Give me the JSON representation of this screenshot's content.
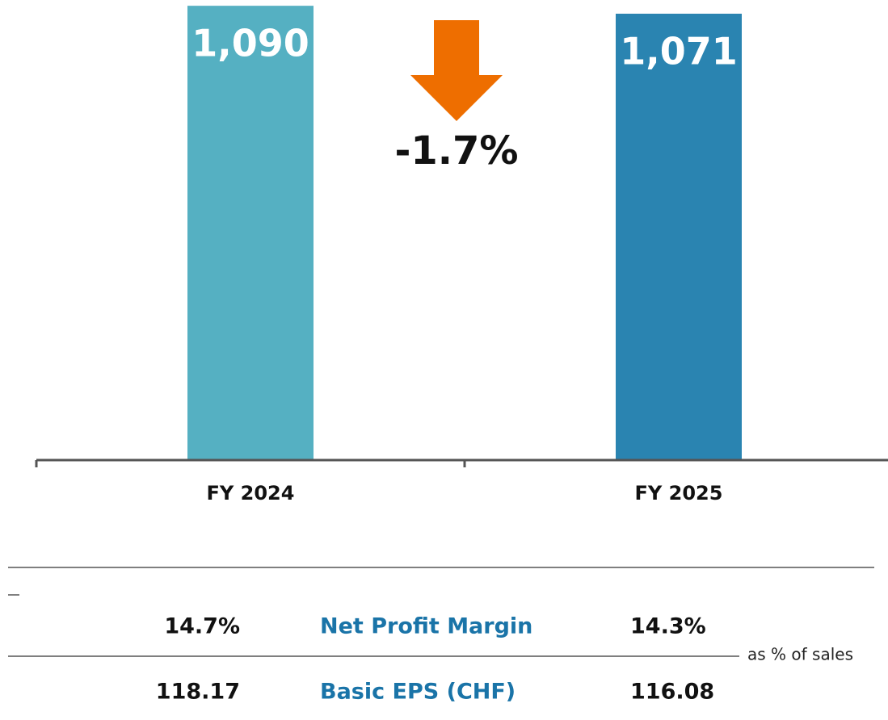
{
  "chart_data": {
    "type": "bar",
    "categories": [
      "FY 2024",
      "FY 2025"
    ],
    "values": [
      1090,
      1071
    ],
    "value_labels": [
      "1,090",
      "1,071"
    ],
    "colors": [
      "#55b0c2",
      "#2a84b1"
    ],
    "ylim": [
      0,
      1100
    ],
    "annotation": "-1.7%",
    "annotation_color": "#ee6e00"
  },
  "table": {
    "rows": [
      [
        "14.7%",
        "Net Profit Margin",
        "14.3%"
      ],
      [
        "118.17",
        "Basic EPS (CHF)",
        "116.08"
      ]
    ],
    "note": "as % of sales"
  }
}
